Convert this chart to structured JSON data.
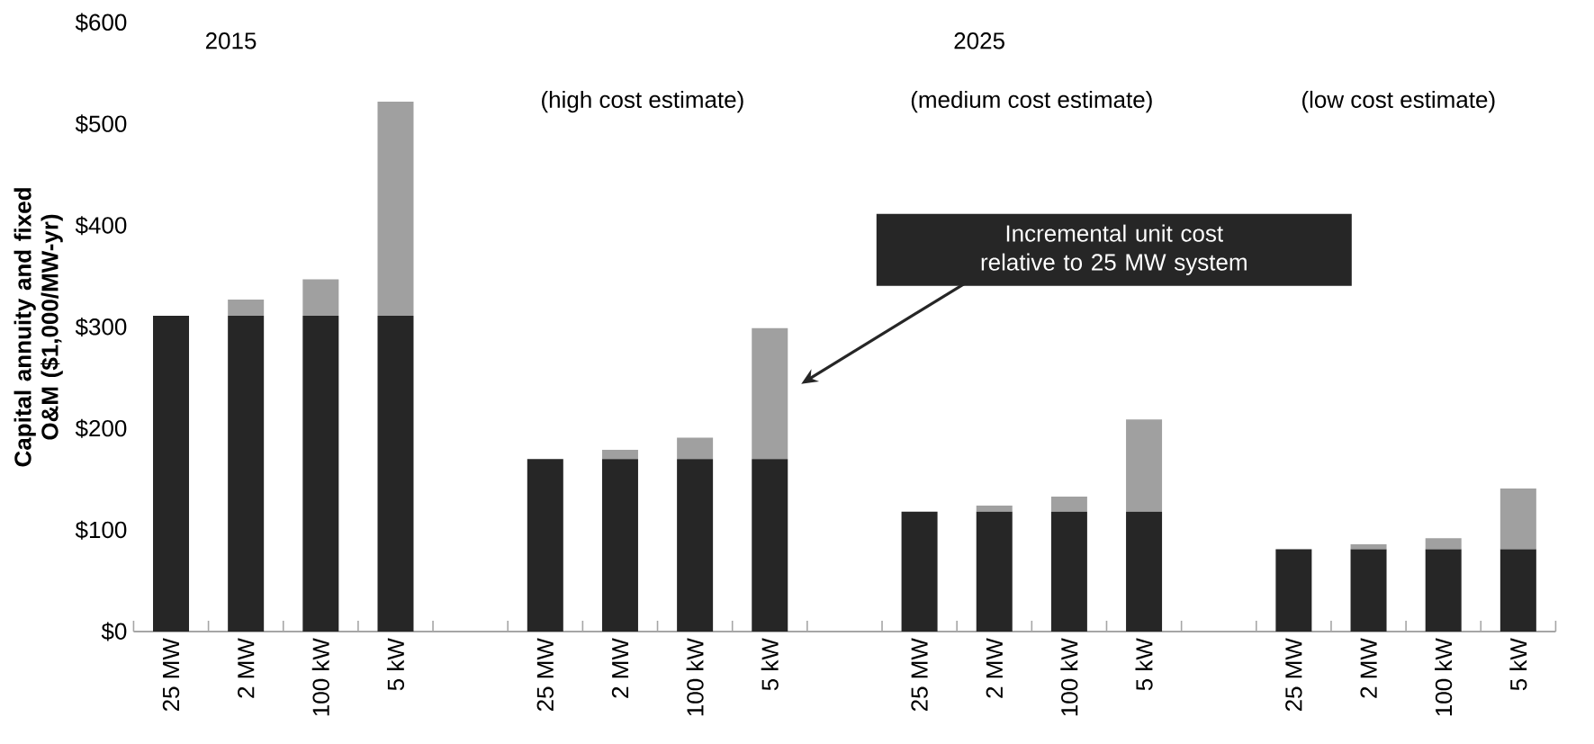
{
  "chart_data": {
    "type": "bar",
    "stacked": true,
    "ylabel": "Capital annuity and fixed O&M ($1,000/MW-yr)",
    "categories": [
      "25 MW",
      "2 MW",
      "100 kW",
      "5 kW",
      null,
      "25 MW",
      "2 MW",
      "100 kW",
      "5 kW",
      null,
      "25 MW",
      "2 MW",
      "100 kW",
      "5 kW",
      null,
      "25 MW",
      "2 MW",
      "100 kW",
      "5 kW"
    ],
    "series": [
      {
        "color": "#262626",
        "values": [
          311,
          311,
          311,
          311,
          null,
          170,
          170,
          170,
          170,
          null,
          118,
          118,
          118,
          118,
          null,
          81,
          81,
          81,
          81
        ]
      },
      {
        "color": "#a0a0a0",
        "values": [
          0,
          16,
          36,
          211,
          null,
          0,
          9,
          21,
          129,
          null,
          0,
          6,
          15,
          91,
          null,
          0,
          5,
          11,
          60
        ]
      }
    ],
    "ylim": [
      0,
      600
    ],
    "yticks": [
      {
        "value": 0,
        "label": "$0"
      },
      {
        "value": 100,
        "label": "$100"
      },
      {
        "value": 200,
        "label": "$200"
      },
      {
        "value": 300,
        "label": "$300"
      },
      {
        "value": 400,
        "label": "$400"
      },
      {
        "value": 500,
        "label": "$500"
      },
      {
        "value": 600,
        "label": "$600"
      }
    ],
    "grid": false,
    "annotations": [
      "2015",
      "2025",
      "(high cost estimate)",
      "(medium cost estimate)",
      "(low cost estimate)",
      "Incremental unit cost relative to 25 MW system"
    ]
  }
}
